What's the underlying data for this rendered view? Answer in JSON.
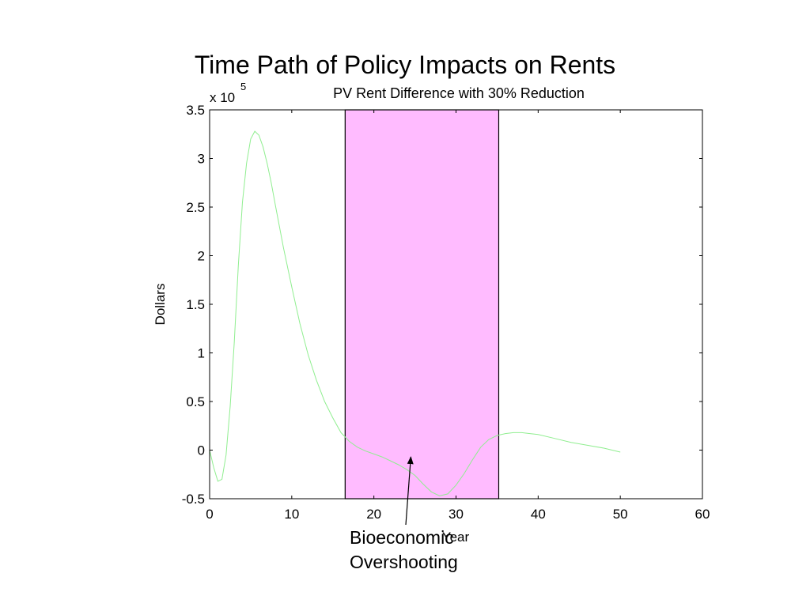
{
  "slide": {
    "title": "Time Path of Policy Impacts on Rents"
  },
  "chart_data": {
    "type": "line",
    "title": "PV Rent Difference with 30% Reduction",
    "xlabel": "Year",
    "ylabel": "Dollars",
    "y_multiplier_label": "x 10",
    "y_multiplier_exponent": "5",
    "xlim": [
      0,
      60
    ],
    "ylim": [
      -0.5,
      3.5
    ],
    "x_ticks": [
      "0",
      "10",
      "20",
      "30",
      "40",
      "50",
      "60"
    ],
    "y_ticks": [
      "-0.5",
      "0",
      "0.5",
      "1",
      "1.5",
      "2",
      "2.5",
      "3",
      "3.5"
    ],
    "grid": false,
    "series": [
      {
        "color": "#90ee90",
        "x": [
          0,
          0.5,
          1,
          1.5,
          2,
          2.5,
          3,
          3.5,
          4,
          4.5,
          5,
          5.5,
          6,
          6.5,
          7,
          7.5,
          8,
          9,
          10,
          11,
          12,
          13,
          14,
          15,
          16,
          17,
          18,
          19,
          20,
          21,
          22,
          23,
          24,
          25,
          26,
          27,
          28,
          29,
          30,
          31,
          32,
          33,
          34,
          35,
          36,
          37,
          38,
          39,
          40,
          42,
          44,
          46,
          48,
          50
        ],
        "y": [
          0.0,
          -0.18,
          -0.32,
          -0.3,
          -0.05,
          0.45,
          1.1,
          1.9,
          2.55,
          2.95,
          3.2,
          3.28,
          3.24,
          3.12,
          2.95,
          2.75,
          2.52,
          2.08,
          1.68,
          1.3,
          0.98,
          0.72,
          0.5,
          0.33,
          0.18,
          0.09,
          0.03,
          -0.01,
          -0.04,
          -0.07,
          -0.11,
          -0.15,
          -0.2,
          -0.26,
          -0.35,
          -0.43,
          -0.47,
          -0.45,
          -0.36,
          -0.24,
          -0.1,
          0.03,
          0.11,
          0.15,
          0.17,
          0.18,
          0.18,
          0.17,
          0.16,
          0.12,
          0.08,
          0.05,
          0.02,
          -0.02
        ]
      }
    ],
    "highlight_region": {
      "x_start": 16.5,
      "x_end": 35.2,
      "color": "#ffbbff"
    },
    "annotation": {
      "lines": [
        "Bioeconomic",
        "Overshooting"
      ],
      "arrow_target": {
        "x": 24.5,
        "y": -0.07
      }
    }
  }
}
